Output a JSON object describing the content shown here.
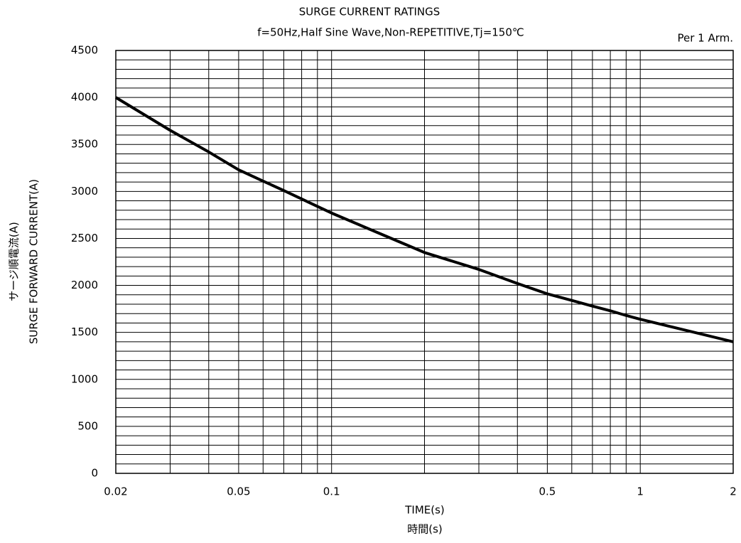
{
  "chart_data": {
    "type": "line",
    "title": "SURGE CURRENT RATINGS",
    "subtitle": "f=50Hz,Half Sine Wave,Non-REPETITIVE,Tj=150℃",
    "annotation": "Per 1 Arm.",
    "y_label": [
      "サージ順電流(A)",
      "SURGE FORWARD CURRENT(A)"
    ],
    "x_label": [
      "TIME(s)",
      "時間(s)"
    ],
    "x_scale": "log",
    "xlim": [
      0.02,
      2
    ],
    "xticks": [
      0.02,
      0.05,
      0.1,
      0.5,
      1,
      2
    ],
    "x_minor_ticks": [
      0.03,
      0.04,
      0.06,
      0.07,
      0.08,
      0.09,
      0.2,
      0.3,
      0.4,
      0.6,
      0.7,
      0.8,
      0.9
    ],
    "ylim": [
      0,
      4500
    ],
    "yticks": [
      0,
      500,
      1000,
      1500,
      2000,
      2500,
      3000,
      3500,
      4000,
      4500
    ],
    "y_minor_ticks": [
      100,
      200,
      300,
      400,
      600,
      700,
      800,
      900,
      1100,
      1200,
      1300,
      1400,
      1600,
      1700,
      1800,
      1900,
      2100,
      2200,
      2300,
      2400,
      2600,
      2700,
      2800,
      2900,
      3100,
      3200,
      3300,
      3400,
      3600,
      3700,
      3800,
      3900,
      4100,
      4200,
      4300,
      4400
    ],
    "grid": true,
    "series": [
      {
        "color": "#000000",
        "x": [
          0.02,
          0.03,
          0.04,
          0.05,
          0.06,
          0.07,
          0.08,
          0.09,
          0.1,
          0.2,
          0.3,
          0.4,
          0.5,
          0.6,
          0.7,
          0.8,
          0.9,
          1,
          2
        ],
        "values": [
          4000,
          3650,
          3420,
          3230,
          3110,
          3010,
          2920,
          2840,
          2770,
          2350,
          2170,
          2020,
          1910,
          1840,
          1780,
          1730,
          1680,
          1640,
          1400
        ]
      }
    ]
  }
}
